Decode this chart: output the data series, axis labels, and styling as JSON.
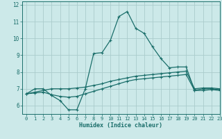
{
  "title": "",
  "xlabel": "Humidex (Indice chaleur)",
  "ylabel": "",
  "background_color": "#cce9e9",
  "grid_color": "#aacccc",
  "line_color": "#1a6e6a",
  "xlim": [
    -0.5,
    23
  ],
  "ylim": [
    5.5,
    12.2
  ],
  "xticks": [
    0,
    1,
    2,
    3,
    4,
    5,
    6,
    7,
    8,
    9,
    10,
    11,
    12,
    13,
    14,
    15,
    16,
    17,
    18,
    19,
    20,
    21,
    22,
    23
  ],
  "yticks": [
    6,
    7,
    8,
    9,
    10,
    11,
    12
  ],
  "line1_x": [
    0,
    1,
    2,
    3,
    4,
    5,
    6,
    7,
    8,
    9,
    10,
    11,
    12,
    13,
    14,
    15,
    16,
    17,
    18,
    19,
    20,
    21,
    22,
    23
  ],
  "line1_y": [
    6.7,
    7.0,
    7.0,
    6.6,
    6.3,
    5.75,
    5.75,
    7.0,
    9.1,
    9.15,
    9.9,
    11.3,
    11.6,
    10.6,
    10.3,
    9.5,
    8.8,
    8.25,
    8.3,
    8.3,
    6.9,
    7.0,
    7.0,
    6.95
  ],
  "line2_x": [
    0,
    1,
    2,
    3,
    4,
    5,
    6,
    7,
    8,
    9,
    10,
    11,
    12,
    13,
    14,
    15,
    16,
    17,
    18,
    19,
    20,
    21,
    22,
    23
  ],
  "line2_y": [
    6.7,
    6.75,
    6.8,
    6.65,
    6.55,
    6.5,
    6.55,
    6.7,
    6.85,
    7.0,
    7.15,
    7.3,
    7.45,
    7.55,
    7.6,
    7.65,
    7.7,
    7.75,
    7.8,
    7.85,
    6.9,
    6.9,
    6.95,
    6.9
  ],
  "line3_x": [
    0,
    1,
    2,
    3,
    4,
    5,
    6,
    7,
    8,
    9,
    10,
    11,
    12,
    13,
    14,
    15,
    16,
    17,
    18,
    19,
    20,
    21,
    22,
    23
  ],
  "line3_y": [
    6.7,
    6.8,
    6.9,
    7.0,
    7.0,
    7.0,
    7.05,
    7.1,
    7.2,
    7.3,
    7.45,
    7.55,
    7.65,
    7.75,
    7.8,
    7.85,
    7.9,
    7.95,
    8.0,
    8.05,
    7.0,
    7.05,
    7.05,
    7.0
  ]
}
